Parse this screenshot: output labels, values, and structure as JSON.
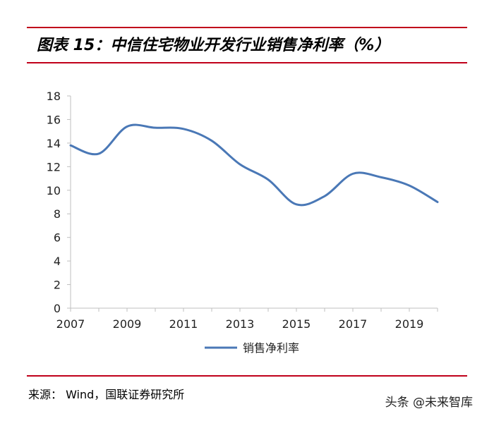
{
  "header": {
    "title": "图表 15：中信住宅物业开发行业销售净利率（%）"
  },
  "footer": {
    "source": "来源：  Wind，国联证券研究所",
    "watermark": "头条 @未来智库"
  },
  "colors": {
    "accent_rule": "#c0001a",
    "series_line": "#4a78b6",
    "axis": "#bfbfbf"
  },
  "chart_data": {
    "type": "line",
    "x": [
      2007,
      2008,
      2009,
      2010,
      2011,
      2012,
      2013,
      2014,
      2015,
      2016,
      2017,
      2018,
      2019,
      2020
    ],
    "x_tick_labels": [
      "2007",
      "2009",
      "2011",
      "2013",
      "2015",
      "2017",
      "2019"
    ],
    "y_tick_labels": [
      "0",
      "2",
      "4",
      "6",
      "8",
      "10",
      "12",
      "14",
      "16",
      "18"
    ],
    "xlim": [
      2007,
      2020
    ],
    "ylim": [
      0,
      18
    ],
    "grid": false,
    "legend_position": "bottom",
    "series": [
      {
        "name": "销售净利率",
        "values": [
          13.8,
          13.1,
          15.4,
          15.3,
          15.2,
          14.2,
          12.2,
          10.9,
          8.8,
          9.5,
          11.4,
          11.1,
          10.4,
          9.0
        ]
      }
    ]
  }
}
